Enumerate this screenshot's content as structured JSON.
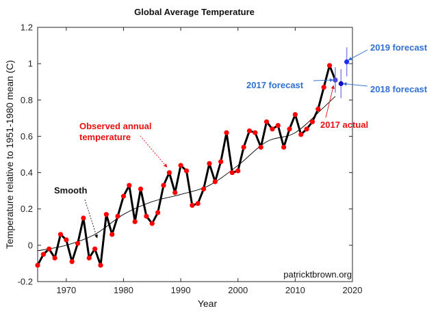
{
  "chart_data": {
    "type": "line",
    "title": "Global Average Temperature",
    "xlabel": "Year",
    "ylabel": "Temperature relative to 1951-1980 mean (C)",
    "xlim": [
      1965,
      2020
    ],
    "ylim": [
      -0.2,
      1.2
    ],
    "x_ticks": [
      1970,
      1980,
      1990,
      2000,
      2010,
      2020
    ],
    "y_ticks": [
      -0.2,
      0,
      0.2,
      0.4,
      0.6,
      0.8,
      1,
      1.2
    ],
    "x_tick_labels": [
      "1970",
      "1980",
      "1990",
      "2000",
      "2010",
      "2020"
    ],
    "y_tick_labels": [
      "-0.2",
      "0",
      "0.2",
      "0.4",
      "0.6",
      "0.8",
      "1",
      "1.2"
    ],
    "series": [
      {
        "name": "Observed annual temperature",
        "color": "#000000",
        "marker_color": "#ff0000",
        "x": [
          1965,
          1966,
          1967,
          1968,
          1969,
          1970,
          1971,
          1972,
          1973,
          1974,
          1975,
          1976,
          1977,
          1978,
          1979,
          1980,
          1981,
          1982,
          1983,
          1984,
          1985,
          1986,
          1987,
          1988,
          1989,
          1990,
          1991,
          1992,
          1993,
          1994,
          1995,
          1996,
          1997,
          1998,
          1999,
          2000,
          2001,
          2002,
          2003,
          2004,
          2005,
          2006,
          2007,
          2008,
          2009,
          2010,
          2011,
          2012,
          2013,
          2014,
          2015,
          2016,
          2017
        ],
        "values": [
          -0.11,
          -0.05,
          -0.02,
          -0.07,
          0.06,
          0.03,
          -0.09,
          0.01,
          0.15,
          -0.07,
          -0.02,
          -0.11,
          0.17,
          0.06,
          0.16,
          0.27,
          0.33,
          0.13,
          0.31,
          0.16,
          0.12,
          0.18,
          0.33,
          0.4,
          0.29,
          0.44,
          0.41,
          0.22,
          0.23,
          0.31,
          0.45,
          0.35,
          0.46,
          0.62,
          0.4,
          0.41,
          0.54,
          0.63,
          0.62,
          0.54,
          0.68,
          0.64,
          0.66,
          0.54,
          0.64,
          0.72,
          0.61,
          0.64,
          0.68,
          0.75,
          0.87,
          0.99,
          0.91
        ]
      },
      {
        "name": "Smooth",
        "color": "#000000",
        "x": [
          1965,
          1970,
          1975,
          1980,
          1985,
          1990,
          1995,
          2000,
          2005,
          2010,
          2015,
          2017
        ],
        "values": [
          -0.03,
          0.0,
          0.06,
          0.17,
          0.24,
          0.28,
          0.33,
          0.44,
          0.57,
          0.62,
          0.76,
          0.82
        ]
      }
    ],
    "forecasts": [
      {
        "label": "2017 forecast",
        "year": 2017,
        "value": 0.91,
        "error": 0.07,
        "color": "#4a4ad8"
      },
      {
        "label": "2018 forecast",
        "year": 2018,
        "value": 0.89,
        "error": 0.08,
        "color": "#1010c0"
      },
      {
        "label": "2019 forecast",
        "year": 2019,
        "value": 1.01,
        "error": 0.08,
        "color": "#1a2cff"
      }
    ],
    "annotations": [
      {
        "text_lines": [
          "Observed annual",
          "temperature"
        ],
        "style": "red",
        "target_x": 1987.6,
        "target_y": 0.43
      },
      {
        "text_lines": [
          "Smooth"
        ],
        "style": "black",
        "target_x": 1975.4,
        "target_y": 0.04
      },
      {
        "text_lines": [
          "2017 actual"
        ],
        "style": "red",
        "target_x": 2016.7,
        "target_y": 0.88
      },
      {
        "text_lines": [
          "2017 forecast"
        ],
        "style": "blue",
        "target_x": 2016.6,
        "target_y": 0.91
      },
      {
        "text_lines": [
          "2018 forecast"
        ],
        "style": "blue",
        "target_x": 2018.4,
        "target_y": 0.89
      },
      {
        "text_lines": [
          "2019 forecast"
        ],
        "style": "blue",
        "target_x": 2019.3,
        "target_y": 1.02
      }
    ],
    "watermark": "patricktbrown.org",
    "grid": false
  }
}
